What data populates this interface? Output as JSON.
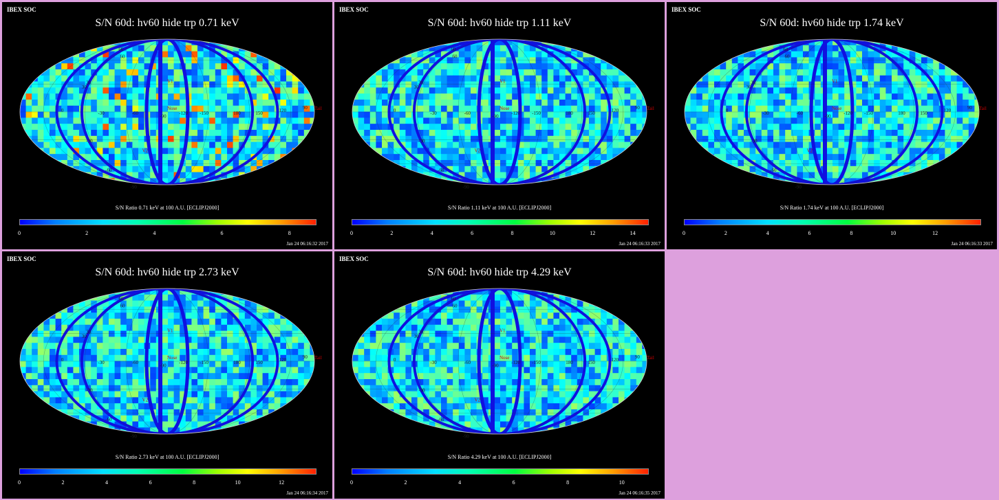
{
  "panels": [
    {
      "id": "p1",
      "header": "IBEX SOC",
      "title": "S/N  60d: hv60 hide trp 0.71 keV",
      "colorbar_title": "S/N Ratio 0.71 keV at 100 A.U. [ECLIPJ2000]",
      "colorbar_max": 8.8,
      "ticks": [
        "0",
        "2",
        "4",
        "6",
        "8"
      ],
      "timestamp": "Jan 24 06:16:32 2017"
    },
    {
      "id": "p2",
      "header": "IBEX SOC",
      "title": "S/N  60d: hv60 hide trp 1.11 keV",
      "colorbar_title": "S/N Ratio 1.11 keV at 100 A.U. [ECLIPJ2000]",
      "colorbar_max": 14.8,
      "ticks": [
        "0",
        "2",
        "4",
        "6",
        "8",
        "10",
        "12",
        "14"
      ],
      "timestamp": "Jan 24 06:16:33 2017"
    },
    {
      "id": "p3",
      "header": "IBEX SOC",
      "title": "S/N  60d: hv60 hide trp 1.74 keV",
      "colorbar_title": "S/N Ratio 1.74 keV at 100 A.U. [ECLIPJ2000]",
      "colorbar_max": 14.2,
      "ticks": [
        "0",
        "2",
        "4",
        "6",
        "8",
        "10",
        "12"
      ],
      "timestamp": "Jan 24 06:16:33 2017"
    },
    {
      "id": "p4",
      "header": "IBEX SOC",
      "title": "S/N  60d: hv60 hide trp 2.73 keV",
      "colorbar_title": "S/N Ratio 2.73 keV at 100 A.U. [ECLIPJ2000]",
      "colorbar_max": 13.6,
      "ticks": [
        "0",
        "2",
        "4",
        "6",
        "8",
        "10",
        "12"
      ],
      "timestamp": "Jan 24 06:16:34 2017"
    },
    {
      "id": "p5",
      "header": "IBEX SOC",
      "title": "S/N  60d: hv60 hide trp 4.29 keV",
      "colorbar_title": "S/N Ratio 4.29 keV at 100 A.U. [ECLIPJ2000]",
      "colorbar_max": 11.0,
      "ticks": [
        "0",
        "2",
        "4",
        "6",
        "8",
        "10"
      ],
      "timestamp": "Jan 24 06:16:35 2017"
    }
  ],
  "map_labels": {
    "longitudes": [
      "60",
      "30",
      "0",
      "-30",
      "-60",
      "-90",
      "-120",
      "-150",
      "180",
      "150",
      "120",
      "90"
    ],
    "latitudes": [
      "60",
      "30",
      "-30",
      "-60",
      "-90"
    ],
    "markers": [
      "V1",
      "Nose",
      "Tail",
      "V2"
    ]
  }
}
